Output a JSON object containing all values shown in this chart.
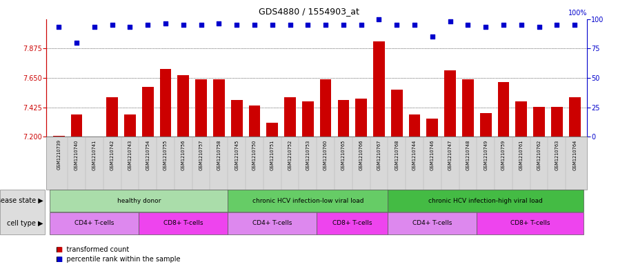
{
  "title": "GDS4880 / 1554903_at",
  "samples": [
    "GSM1210739",
    "GSM1210740",
    "GSM1210741",
    "GSM1210742",
    "GSM1210743",
    "GSM1210754",
    "GSM1210755",
    "GSM1210756",
    "GSM1210757",
    "GSM1210758",
    "GSM1210745",
    "GSM1210750",
    "GSM1210751",
    "GSM1210752",
    "GSM1210753",
    "GSM1210760",
    "GSM1210765",
    "GSM1210766",
    "GSM1210767",
    "GSM1210768",
    "GSM1210744",
    "GSM1210746",
    "GSM1210747",
    "GSM1210748",
    "GSM1210749",
    "GSM1210759",
    "GSM1210761",
    "GSM1210762",
    "GSM1210763",
    "GSM1210764"
  ],
  "bar_values": [
    7.21,
    7.37,
    7.2,
    7.5,
    7.37,
    7.58,
    7.72,
    7.67,
    7.64,
    7.64,
    7.48,
    7.44,
    7.31,
    7.5,
    7.47,
    7.64,
    7.48,
    7.49,
    7.93,
    7.56,
    7.37,
    7.34,
    7.71,
    7.64,
    7.38,
    7.62,
    7.47,
    7.43,
    7.43,
    7.5
  ],
  "percentile_values": [
    93,
    80,
    93,
    95,
    93,
    95,
    96,
    95,
    95,
    96,
    95,
    95,
    95,
    95,
    95,
    95,
    95,
    95,
    100,
    95,
    95,
    85,
    98,
    95,
    93,
    95,
    95,
    93,
    95,
    95
  ],
  "ylim_left": [
    7.2,
    8.1
  ],
  "ylim_right": [
    0,
    100
  ],
  "yticks_left": [
    7.2,
    7.425,
    7.65,
    7.875
  ],
  "yticks_right": [
    0,
    25,
    50,
    75,
    100
  ],
  "bar_color": "#cc0000",
  "dot_color": "#0000cc",
  "grid_color": "#000000",
  "disease_state_groups": [
    {
      "label": "healthy donor",
      "start": 0,
      "end": 9,
      "color": "#aaddaa"
    },
    {
      "label": "chronic HCV infection-low viral load",
      "start": 10,
      "end": 18,
      "color": "#66cc66"
    },
    {
      "label": "chronic HCV infection-high viral load",
      "start": 19,
      "end": 29,
      "color": "#44bb44"
    }
  ],
  "cell_type_groups": [
    {
      "label": "CD4+ T-cells",
      "start": 0,
      "end": 4,
      "color": "#dd88ee"
    },
    {
      "label": "CD8+ T-cells",
      "start": 5,
      "end": 9,
      "color": "#ee44ee"
    },
    {
      "label": "CD4+ T-cells",
      "start": 10,
      "end": 14,
      "color": "#dd88ee"
    },
    {
      "label": "CD8+ T-cells",
      "start": 15,
      "end": 18,
      "color": "#ee44ee"
    },
    {
      "label": "CD4+ T-cells",
      "start": 19,
      "end": 23,
      "color": "#dd88ee"
    },
    {
      "label": "CD8+ T-cells",
      "start": 24,
      "end": 29,
      "color": "#ee44ee"
    }
  ],
  "disease_state_label": "disease state",
  "cell_type_label": "cell type",
  "legend_red_label": "transformed count",
  "legend_blue_label": "percentile rank within the sample",
  "bar_color_hex": "#cc0000",
  "dot_color_hex": "#0000cc"
}
